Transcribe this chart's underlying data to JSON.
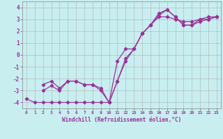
{
  "xlabel": "Windchill (Refroidissement éolien,°C)",
  "bg_color": "#c8eef0",
  "grid_color": "#b0b0b0",
  "line_color": "#993399",
  "xlim": [
    -0.5,
    23.5
  ],
  "ylim": [
    -4.5,
    4.5
  ],
  "xticks": [
    0,
    1,
    2,
    3,
    4,
    5,
    6,
    7,
    8,
    9,
    10,
    11,
    12,
    13,
    14,
    15,
    16,
    17,
    18,
    19,
    20,
    21,
    22,
    23
  ],
  "yticks": [
    -4,
    -3,
    -2,
    -1,
    0,
    1,
    2,
    3,
    4
  ],
  "line1_x": [
    0,
    1,
    2,
    3,
    4,
    5,
    6,
    7,
    8,
    9,
    10,
    11,
    12,
    13,
    14,
    15,
    16,
    17,
    18,
    19,
    20,
    21,
    22,
    23
  ],
  "line1_y": [
    -3.7,
    -4.0,
    -4.0,
    -4.0,
    -4.0,
    -4.0,
    -4.0,
    -4.0,
    -4.0,
    -4.0,
    -4.0,
    -2.2,
    -0.5,
    0.5,
    1.8,
    2.5,
    3.2,
    3.2,
    3.0,
    2.8,
    2.8,
    3.0,
    3.2,
    3.2
  ],
  "line2_x": [
    2,
    3,
    4,
    5,
    6,
    7,
    8,
    9,
    10,
    11,
    12,
    13,
    14,
    15,
    16,
    17,
    18,
    19,
    20,
    21,
    22,
    23
  ],
  "line2_y": [
    -3.0,
    -2.6,
    -3.0,
    -2.2,
    -2.2,
    -2.5,
    -2.5,
    -3.0,
    -4.0,
    -2.2,
    -0.3,
    0.5,
    1.8,
    2.5,
    3.5,
    3.8,
    3.2,
    2.5,
    2.5,
    2.8,
    3.0,
    3.2
  ],
  "line3_x": [
    2,
    3,
    4,
    5,
    6,
    7,
    8,
    9,
    10,
    11,
    12,
    13,
    14,
    15,
    16,
    17,
    18,
    19,
    20,
    21,
    22,
    23
  ],
  "line3_y": [
    -2.5,
    -2.2,
    -2.8,
    -2.2,
    -2.2,
    -2.5,
    -2.5,
    -2.8,
    -4.0,
    -0.5,
    0.5,
    0.5,
    1.8,
    2.5,
    3.3,
    3.8,
    3.2,
    2.5,
    2.5,
    3.0,
    3.0,
    3.2
  ]
}
